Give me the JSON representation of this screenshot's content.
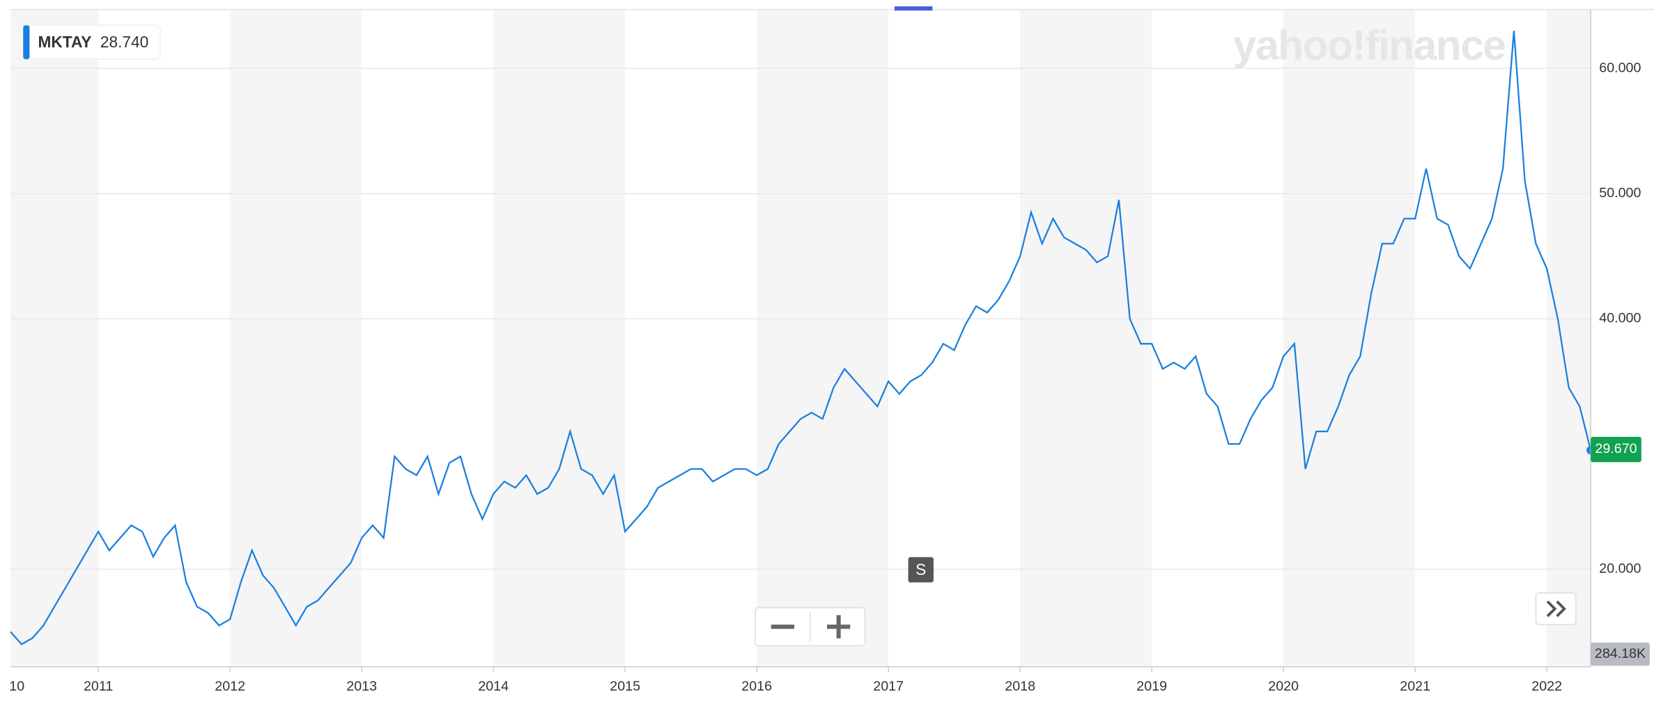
{
  "chart_data": {
    "type": "line",
    "symbol": "MKTAY",
    "quote": "28.740",
    "logo": "yahoo!finance",
    "last_price": "29.670",
    "volume_label": "284.18K",
    "marker": "S",
    "categories": [
      "10",
      null,
      null,
      null,
      null,
      null,
      null,
      null,
      "2011",
      null,
      null,
      null,
      null,
      null,
      null,
      null,
      null,
      null,
      null,
      null,
      "2012",
      null,
      null,
      null,
      null,
      null,
      null,
      null,
      null,
      null,
      null,
      null,
      "2013",
      null,
      null,
      null,
      null,
      null,
      null,
      null,
      null,
      null,
      null,
      null,
      "2014",
      null,
      null,
      null,
      null,
      null,
      null,
      null,
      null,
      null,
      null,
      null,
      "2015",
      null,
      null,
      null,
      null,
      null,
      null,
      null,
      null,
      null,
      null,
      null,
      "2016",
      null,
      null,
      null,
      null,
      null,
      null,
      null,
      null,
      null,
      null,
      null,
      "2017",
      null,
      null,
      null,
      null,
      null,
      null,
      null,
      null,
      null,
      null,
      null,
      "2018",
      null,
      null,
      null,
      null,
      null,
      null,
      null,
      null,
      null,
      null,
      null,
      "2019",
      null,
      null,
      null,
      null,
      null,
      null,
      null,
      null,
      null,
      null,
      null,
      "2020",
      null,
      null,
      null,
      null,
      null,
      null,
      null,
      null,
      null,
      null,
      null,
      "2021",
      null,
      null,
      null,
      null,
      null,
      null,
      null,
      null,
      null,
      null,
      null,
      "2022",
      null,
      null,
      null,
      null
    ],
    "series": [
      {
        "name": "MKTAY",
        "color": "#1a7fe0",
        "values": [
          15,
          14,
          14.5,
          15.5,
          17,
          18.5,
          20,
          21.5,
          23,
          21.5,
          22.5,
          23.5,
          23,
          21,
          22.5,
          23.5,
          19,
          17,
          16.5,
          15.5,
          16,
          19,
          21.5,
          19.5,
          18.5,
          17,
          15.5,
          17,
          17.5,
          18.5,
          19.5,
          20.5,
          22.5,
          23.5,
          22.5,
          29,
          28,
          27.5,
          29,
          26,
          28.5,
          29,
          26,
          24,
          26,
          27,
          26.5,
          27.5,
          26,
          26.5,
          28,
          31,
          28,
          27.5,
          26,
          27.5,
          23,
          24,
          25,
          26.5,
          27,
          27.5,
          28,
          28,
          27,
          27.5,
          28,
          28,
          27.5,
          28,
          30,
          31,
          32,
          32.5,
          32,
          34.5,
          36,
          35,
          34,
          33,
          35,
          34,
          35,
          35.5,
          36.5,
          38,
          37.5,
          39.5,
          41,
          40.5,
          41.5,
          43,
          45,
          48.5,
          46,
          48,
          46.5,
          46,
          45.5,
          44.5,
          45,
          49.5,
          40,
          38,
          38,
          36,
          36.5,
          36,
          37,
          34,
          33,
          30,
          30,
          32,
          33.5,
          34.5,
          37,
          38,
          28,
          31,
          31,
          33,
          35.5,
          37,
          42,
          46,
          46,
          48,
          48,
          52,
          48,
          47.5,
          45,
          44,
          46,
          48,
          52,
          63,
          51,
          46,
          44,
          40,
          34.5,
          33,
          29.5
        ]
      }
    ],
    "ylim": [
      12.2,
      64.7
    ],
    "yticks": [
      {
        "value": 20,
        "label": "20.000"
      },
      {
        "value": 40,
        "label": "40.000"
      },
      {
        "value": 50,
        "label": "50.000"
      },
      {
        "value": 60,
        "label": "60.000"
      }
    ],
    "grid": true
  }
}
